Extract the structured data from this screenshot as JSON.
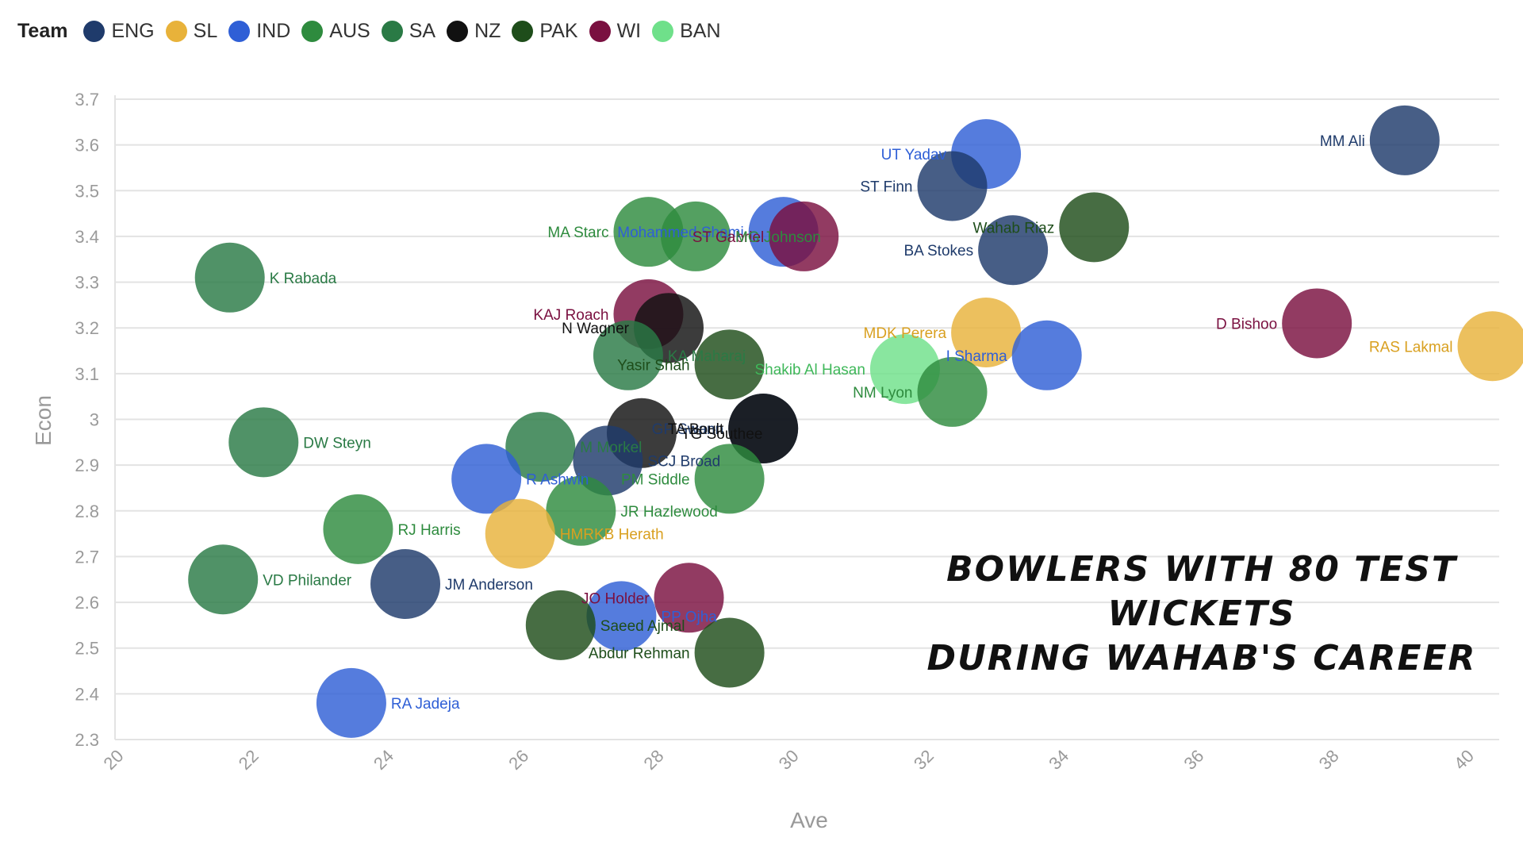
{
  "legend": {
    "title": "Team",
    "items": [
      {
        "label": "ENG",
        "color": "#1f3b6b"
      },
      {
        "label": "SL",
        "color": "#e8b23a"
      },
      {
        "label": "IND",
        "color": "#2f5fd6"
      },
      {
        "label": "AUS",
        "color": "#2e8b3e"
      },
      {
        "label": "SA",
        "color": "#2a7a45"
      },
      {
        "label": "NZ",
        "color": "#111111"
      },
      {
        "label": "PAK",
        "color": "#1e4d1a"
      },
      {
        "label": "WI",
        "color": "#7a1040"
      },
      {
        "label": "BAN",
        "color": "#6fe08a"
      }
    ]
  },
  "overlay_title": {
    "line1": "Bowlers with 80 Test wickets",
    "line2": "during Wahab's career"
  },
  "chart_data": {
    "type": "scatter",
    "xlabel": "Ave",
    "ylabel": "Econ",
    "xlim": [
      20,
      40.5
    ],
    "ylim": [
      2.3,
      3.7
    ],
    "x_ticks": [
      "20",
      "22",
      "24",
      "26",
      "28",
      "30",
      "32",
      "34",
      "36",
      "38",
      "40"
    ],
    "y_ticks": [
      "3.7",
      "3.6",
      "3.5",
      "3.4",
      "3.3",
      "3.2",
      "3.1",
      "3",
      "2.9",
      "2.8",
      "2.7",
      "2.6",
      "2.5",
      "2.4",
      "2.3"
    ],
    "grid": "horizontal",
    "points": [
      {
        "name": "MM Ali",
        "team": "ENG",
        "x": 39.1,
        "y": 3.61,
        "label_side": "left"
      },
      {
        "name": "UT Yadav",
        "team": "IND",
        "x": 32.9,
        "y": 3.58,
        "label_side": "left"
      },
      {
        "name": "ST Finn",
        "team": "ENG",
        "x": 32.4,
        "y": 3.51,
        "label_side": "left"
      },
      {
        "name": "Wahab Riaz",
        "team": "PAK",
        "x": 34.5,
        "y": 3.42,
        "label_side": "left"
      },
      {
        "name": "BA Stokes",
        "team": "ENG",
        "x": 33.3,
        "y": 3.37,
        "label_side": "left"
      },
      {
        "name": "Mohammed Shami",
        "team": "IND",
        "x": 29.9,
        "y": 3.41,
        "label_side": "left"
      },
      {
        "name": "ST Gabriel",
        "team": "WI",
        "x": 30.2,
        "y": 3.4,
        "label_side": "left"
      },
      {
        "name": "MA Starc",
        "team": "AUS",
        "x": 27.9,
        "y": 3.41,
        "label_side": "left"
      },
      {
        "name": "MG Johnson",
        "team": "AUS",
        "x": 28.6,
        "y": 3.4,
        "label_side": "right"
      },
      {
        "name": "K Rabada",
        "team": "SA",
        "x": 21.7,
        "y": 3.31,
        "label_side": "right"
      },
      {
        "name": "KAJ Roach",
        "team": "WI",
        "x": 27.9,
        "y": 3.23,
        "label_side": "left"
      },
      {
        "name": "N Wagner",
        "team": "NZ",
        "x": 28.2,
        "y": 3.2,
        "label_side": "left"
      },
      {
        "name": "D Bishoo",
        "team": "WI",
        "x": 37.8,
        "y": 3.21,
        "label_side": "left"
      },
      {
        "name": "RAS Lakmal",
        "team": "SL",
        "x": 40.4,
        "y": 3.16,
        "label_side": "left"
      },
      {
        "name": "MDK Perera",
        "team": "SL",
        "x": 32.9,
        "y": 3.19,
        "label_side": "left"
      },
      {
        "name": "I Sharma",
        "team": "IND",
        "x": 33.8,
        "y": 3.14,
        "label_side": "left"
      },
      {
        "name": "KA Maharaj",
        "team": "SA",
        "x": 27.6,
        "y": 3.14,
        "label_side": "right"
      },
      {
        "name": "Yasir Shah",
        "team": "PAK",
        "x": 29.1,
        "y": 3.12,
        "label_side": "left"
      },
      {
        "name": "Shakib Al Hasan",
        "team": "BAN",
        "x": 31.7,
        "y": 3.11,
        "label_side": "left"
      },
      {
        "name": "NM Lyon",
        "team": "AUS",
        "x": 32.4,
        "y": 3.06,
        "label_side": "left"
      },
      {
        "name": "TG Southee",
        "team": "NZ",
        "x": 27.8,
        "y": 2.97,
        "label_side": "right"
      },
      {
        "name": "GP Swann",
        "team": "ENG",
        "x": 29.6,
        "y": 2.98,
        "label_side": "left"
      },
      {
        "name": "TA Boult",
        "team": "NZ",
        "x": 29.6,
        "y": 2.98,
        "label_side": "left"
      },
      {
        "name": "DW Steyn",
        "team": "SA",
        "x": 22.2,
        "y": 2.95,
        "label_side": "right"
      },
      {
        "name": "M Morkel",
        "team": "SA",
        "x": 26.3,
        "y": 2.94,
        "label_side": "right"
      },
      {
        "name": "SCJ Broad",
        "team": "ENG",
        "x": 27.3,
        "y": 2.91,
        "label_side": "right"
      },
      {
        "name": "R Ashwin",
        "team": "IND",
        "x": 25.5,
        "y": 2.87,
        "label_side": "right"
      },
      {
        "name": "PM Siddle",
        "team": "AUS",
        "x": 29.1,
        "y": 2.87,
        "label_side": "left"
      },
      {
        "name": "JR Hazlewood",
        "team": "AUS",
        "x": 26.9,
        "y": 2.8,
        "label_side": "right"
      },
      {
        "name": "RJ Harris",
        "team": "AUS",
        "x": 23.6,
        "y": 2.76,
        "label_side": "right"
      },
      {
        "name": "HMRKB Herath",
        "team": "SL",
        "x": 26.0,
        "y": 2.75,
        "label_side": "right"
      },
      {
        "name": "VD Philander",
        "team": "SA",
        "x": 21.6,
        "y": 2.65,
        "label_side": "right"
      },
      {
        "name": "JM Anderson",
        "team": "ENG",
        "x": 24.3,
        "y": 2.64,
        "label_side": "right"
      },
      {
        "name": "JO Holder",
        "team": "WI",
        "x": 28.5,
        "y": 2.61,
        "label_side": "left"
      },
      {
        "name": "PP Ojha",
        "team": "IND",
        "x": 27.5,
        "y": 2.57,
        "label_side": "right"
      },
      {
        "name": "Saeed Ajmal",
        "team": "PAK",
        "x": 26.6,
        "y": 2.55,
        "label_side": "right"
      },
      {
        "name": "Abdur Rehman",
        "team": "PAK",
        "x": 29.1,
        "y": 2.49,
        "label_side": "left"
      },
      {
        "name": "RA Jadeja",
        "team": "IND",
        "x": 23.5,
        "y": 2.38,
        "label_side": "right"
      }
    ]
  }
}
